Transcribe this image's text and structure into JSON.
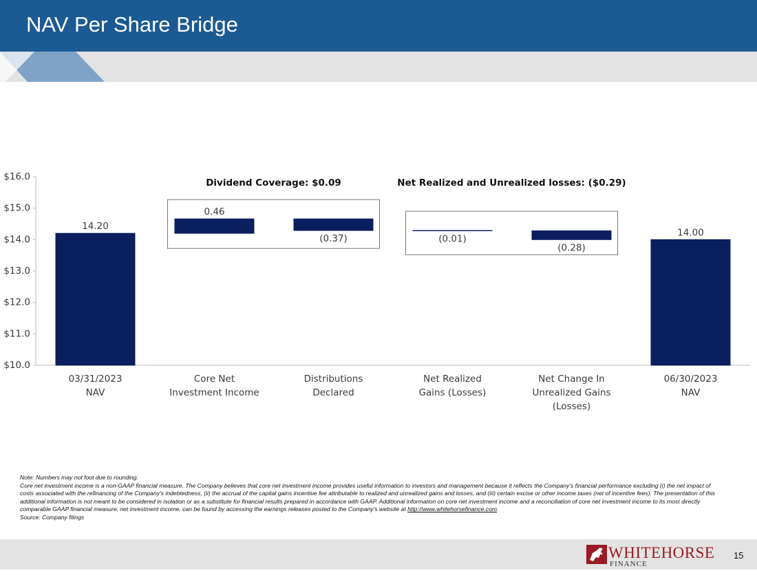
{
  "header": {
    "title": "NAV Per Share Bridge"
  },
  "chart_data": {
    "type": "waterfall",
    "categories": [
      [
        "03/31/2023",
        "NAV"
      ],
      [
        "Core Net",
        "Investment Income"
      ],
      [
        "Distributions",
        "Declared"
      ],
      [
        "Net Realized",
        "Gains (Losses)"
      ],
      [
        "Net Change In",
        "Unrealized Gains",
        "(Losses)"
      ],
      [
        "06/30/2023",
        "NAV"
      ]
    ],
    "values": [
      14.2,
      0.46,
      -0.37,
      -0.01,
      -0.28,
      14.0
    ],
    "value_labels": [
      "14.20",
      "0.46",
      "(0.37)",
      "(0.01)",
      "(0.28)",
      "14.00"
    ],
    "is_total": [
      true,
      false,
      false,
      false,
      false,
      true
    ],
    "color": "#0b1f5e",
    "ylim": [
      10,
      16
    ],
    "yticks": [
      {
        "value": 10,
        "label": "$10.0"
      },
      {
        "value": 11,
        "label": "$11.0"
      },
      {
        "value": 12,
        "label": "$12.0"
      },
      {
        "value": 13,
        "label": "$13.0"
      },
      {
        "value": 14,
        "label": "$14.0"
      },
      {
        "value": 15,
        "label": "$15.0"
      },
      {
        "value": 16,
        "label": "$16.0"
      }
    ],
    "annotations": [
      "Dividend Coverage: $0.09",
      "Net Realized and Unrealized losses: ($0.29)"
    ]
  },
  "notes": {
    "rounding": "Note: Numbers may not foot due to rounding.",
    "core_text": "Core net investment income is a non-GAAP financial measure. The Company believes that core net investment income provides useful information to investors and management because it reflects the Company's financial performance excluding (i) the net impact of costs associated with the refinancing of the Company's indebtedness, (ii) the accrual of the capital gains incentive fee attributable to realized and unrealized gains and losses, and (iii) certain excise or other income taxes (net of incentive fees). The presentation of this additional information is not meant to be considered in isolation or as a substitute for financial results prepared in accordance with GAAP. Additional information on core net investment income and a reconciliation of core net investment income to its most directly comparable GAAP financial measure, net investment income, can be found by accessing the earnings releases posted to the Company's website at",
    "link": "http://www.whitehorsefinance.com",
    "core_end": ".",
    "source": "Source: Company filings"
  },
  "footer": {
    "logo_name": "WHITEHORSE",
    "logo_sub": "FINANCE",
    "page": "15"
  }
}
